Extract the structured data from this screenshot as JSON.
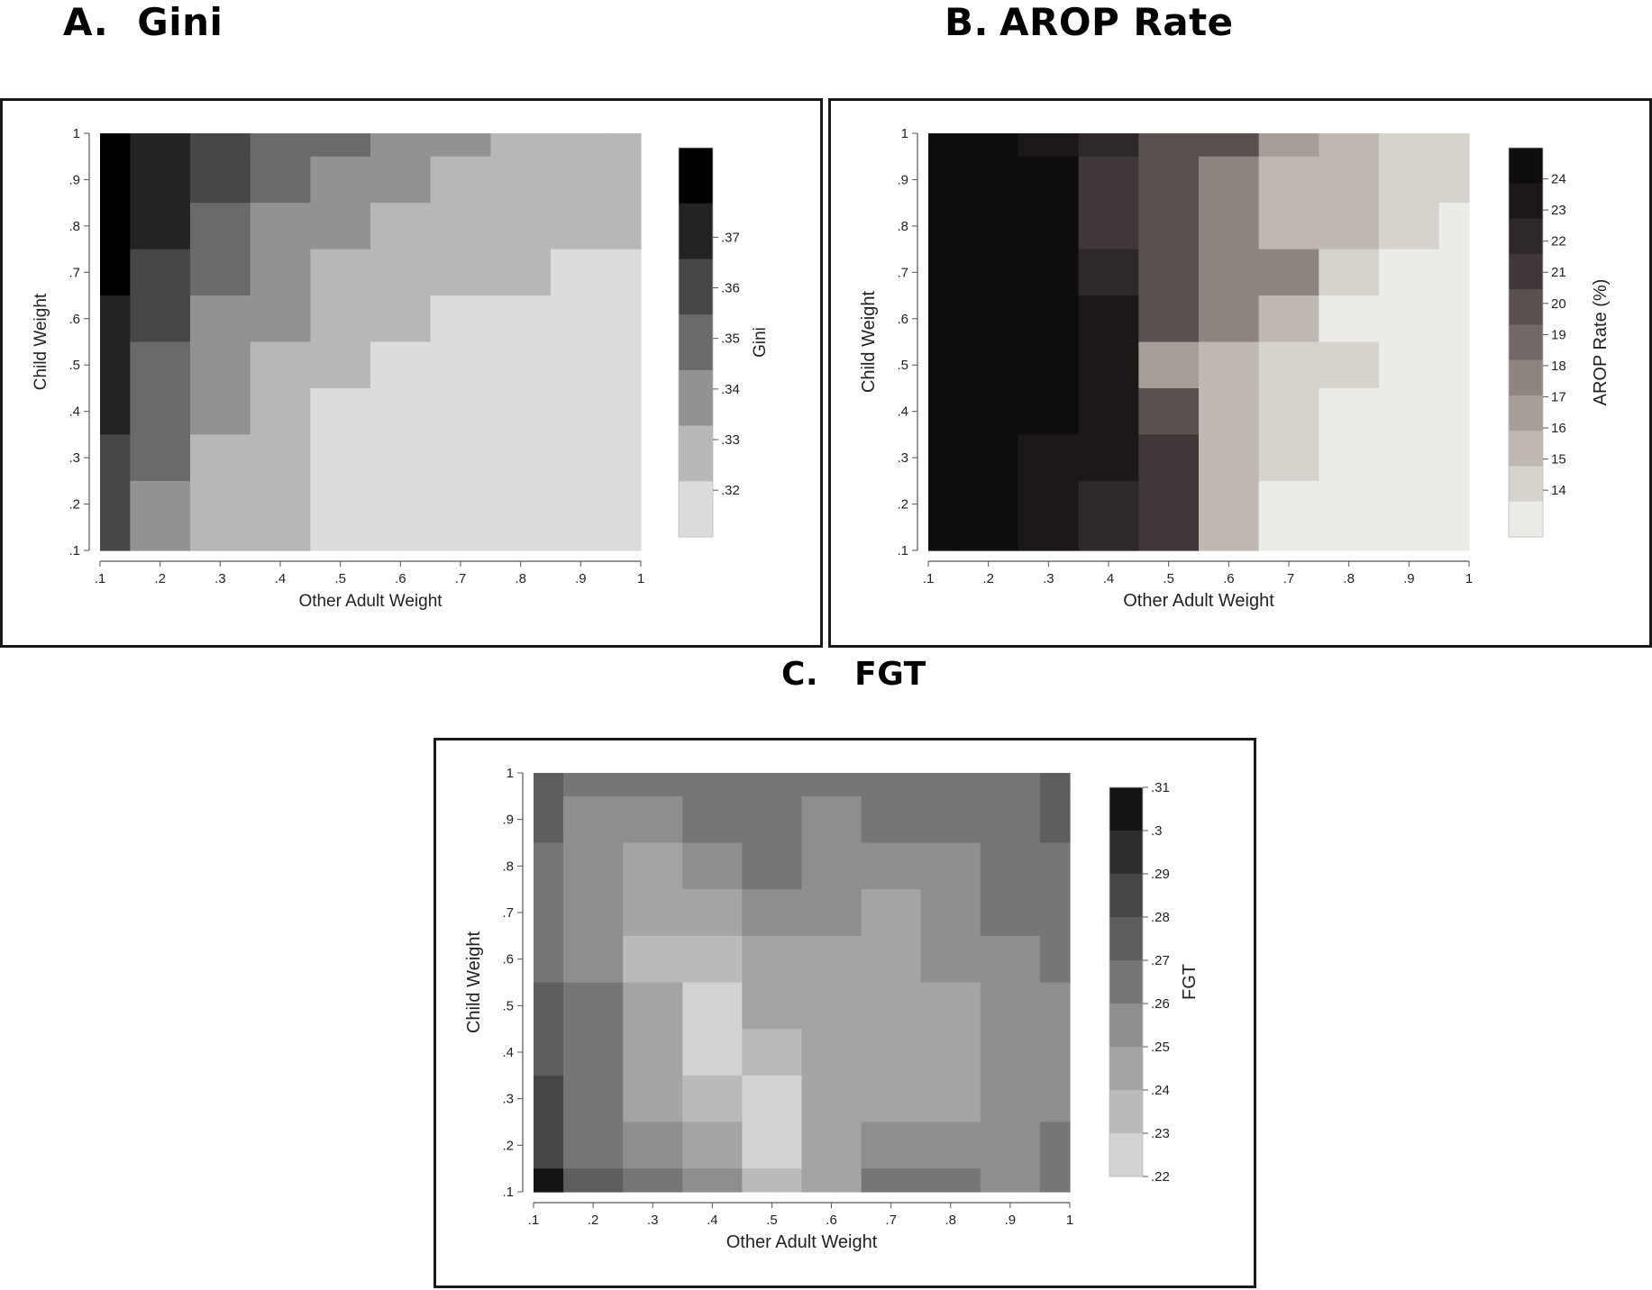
{
  "panels": {
    "a": {
      "letter": "A.",
      "name": "Gini"
    },
    "b": {
      "letter": "B.",
      "name": "AROP Rate"
    },
    "c": {
      "letter": "C.",
      "name": "FGT"
    }
  },
  "chart_data": [
    {
      "id": "a",
      "type": "heatmap",
      "xlabel": "Other Adult Weight",
      "ylabel": "Child Weight",
      "x": [
        0.1,
        0.2,
        0.3,
        0.4,
        0.5,
        0.6,
        0.7,
        0.8,
        0.9,
        1.0
      ],
      "y": [
        0.1,
        0.2,
        0.3,
        0.4,
        0.5,
        0.6,
        0.7,
        0.8,
        0.9,
        1.0
      ],
      "x_ticks": [
        ".1",
        ".2",
        ".3",
        ".4",
        ".5",
        ".6",
        ".7",
        ".8",
        ".9",
        "1"
      ],
      "y_ticks": [
        ".1",
        ".2",
        ".3",
        ".4",
        ".5",
        ".6",
        ".7",
        ".8",
        ".9",
        "1"
      ],
      "values_rows_top_to_bottom": [
        [
          0.375,
          0.365,
          0.355,
          0.345,
          0.345,
          0.335,
          0.335,
          0.325,
          0.325,
          0.325
        ],
        [
          0.375,
          0.365,
          0.355,
          0.345,
          0.335,
          0.335,
          0.325,
          0.325,
          0.325,
          0.325
        ],
        [
          0.375,
          0.365,
          0.345,
          0.335,
          0.335,
          0.325,
          0.325,
          0.325,
          0.325,
          0.325
        ],
        [
          0.375,
          0.355,
          0.345,
          0.335,
          0.325,
          0.325,
          0.325,
          0.325,
          0.315,
          0.315
        ],
        [
          0.365,
          0.355,
          0.335,
          0.335,
          0.325,
          0.325,
          0.315,
          0.315,
          0.315,
          0.315
        ],
        [
          0.365,
          0.345,
          0.335,
          0.325,
          0.325,
          0.315,
          0.315,
          0.315,
          0.315,
          0.315
        ],
        [
          0.365,
          0.345,
          0.335,
          0.325,
          0.315,
          0.315,
          0.315,
          0.315,
          0.315,
          0.315
        ],
        [
          0.355,
          0.345,
          0.325,
          0.325,
          0.315,
          0.315,
          0.315,
          0.315,
          0.315,
          0.315
        ],
        [
          0.355,
          0.335,
          0.325,
          0.325,
          0.315,
          0.315,
          0.315,
          0.315,
          0.315,
          0.315
        ],
        [
          0.355,
          0.335,
          0.325,
          0.325,
          0.315,
          0.315,
          0.315,
          0.315,
          0.315,
          0.315
        ]
      ],
      "legend": {
        "title": "Gini",
        "bins_top_to_bottom": [
          "#000000",
          "#232323",
          "#474747",
          "#6a6a6a",
          "#929292",
          "#b7b7b7",
          "#dcdcdc"
        ],
        "ticks": [
          {
            "label": ".37",
            "pos": 2.3
          },
          {
            "label": ".36",
            "pos": 3.6
          },
          {
            "label": ".35",
            "pos": 4.9
          },
          {
            "label": ".34",
            "pos": 6.2
          },
          {
            "label": ".33",
            "pos": 7.5
          },
          {
            "label": ".32",
            "pos": 8.8
          }
        ],
        "pos_max": 10
      }
    },
    {
      "id": "b",
      "type": "heatmap",
      "xlabel": "Other Adult Weight",
      "ylabel": "Child Weight",
      "x": [
        0.1,
        0.2,
        0.3,
        0.4,
        0.5,
        0.6,
        0.7,
        0.8,
        0.9,
        1.0
      ],
      "y": [
        0.1,
        0.2,
        0.3,
        0.4,
        0.5,
        0.6,
        0.7,
        0.8,
        0.9,
        1.0
      ],
      "x_ticks": [
        ".1",
        ".2",
        ".3",
        ".4",
        ".5",
        ".6",
        ".7",
        ".8",
        ".9",
        "1"
      ],
      "y_ticks": [
        ".1",
        ".2",
        ".3",
        ".4",
        ".5",
        ".6",
        ".7",
        ".8",
        ".9",
        "1"
      ],
      "values_rows_top_to_bottom": [
        [
          23.5,
          23.5,
          22,
          21,
          19,
          19,
          17,
          16,
          15,
          15
        ],
        [
          23.5,
          23.5,
          23.5,
          20,
          19,
          18,
          16,
          16,
          15,
          15
        ],
        [
          23.5,
          23.5,
          23,
          20,
          19,
          18,
          16,
          16,
          15,
          14
        ],
        [
          23.5,
          23.5,
          23,
          21,
          19,
          18,
          18,
          15,
          14,
          13.5
        ],
        [
          23.5,
          23.5,
          23,
          22,
          19,
          18,
          16,
          14,
          14,
          13.5
        ],
        [
          23.5,
          23.5,
          23,
          22,
          17,
          16,
          15,
          15,
          14,
          13.5
        ],
        [
          23.5,
          23.5,
          23,
          22,
          19,
          16,
          15,
          14,
          13.5,
          13.5
        ],
        [
          23.5,
          23.5,
          22,
          22,
          20,
          16,
          15,
          14,
          13.5,
          13.5
        ],
        [
          23.5,
          23.5,
          22,
          21,
          20,
          16,
          14,
          14,
          13.5,
          13.5
        ],
        [
          23.5,
          23,
          22,
          21,
          20,
          16,
          14,
          14,
          13.5,
          13.5
        ]
      ],
      "legend": {
        "title": "AROP Rate (%)",
        "bins_top_to_bottom": [
          "#0e0e0e",
          "#1c1818",
          "#2e2828",
          "#403838",
          "#5a5050",
          "#736868",
          "#8e8480",
          "#a69e98",
          "#bfb7b1",
          "#d6d3cd",
          "#ebebe7"
        ],
        "ticks": [
          {
            "label": "24",
            "pos": 1.0
          },
          {
            "label": "23",
            "pos": 2.0
          },
          {
            "label": "22",
            "pos": 3.0
          },
          {
            "label": "21",
            "pos": 4.0
          },
          {
            "label": "20",
            "pos": 5.0
          },
          {
            "label": "19",
            "pos": 6.0
          },
          {
            "label": "18",
            "pos": 7.0
          },
          {
            "label": "17",
            "pos": 8.0
          },
          {
            "label": "16",
            "pos": 9.0
          },
          {
            "label": "15",
            "pos": 10.0
          },
          {
            "label": "14",
            "pos": 11.0
          }
        ],
        "pos_max": 12.5
      }
    },
    {
      "id": "c",
      "type": "heatmap",
      "xlabel": "Other Adult Weight",
      "ylabel": "Child Weight",
      "x": [
        0.1,
        0.2,
        0.3,
        0.4,
        0.5,
        0.6,
        0.7,
        0.8,
        0.9,
        1.0
      ],
      "y": [
        0.1,
        0.2,
        0.3,
        0.4,
        0.5,
        0.6,
        0.7,
        0.8,
        0.9,
        1.0
      ],
      "x_ticks": [
        ".1",
        ".2",
        ".3",
        ".4",
        ".5",
        ".6",
        ".7",
        ".8",
        ".9",
        "1"
      ],
      "y_ticks": [
        ".1",
        ".2",
        ".3",
        ".4",
        ".5",
        ".6",
        ".7",
        ".8",
        ".9",
        "1"
      ],
      "values_rows_top_to_bottom": [
        [
          0.285,
          0.265,
          0.265,
          0.275,
          0.265,
          0.265,
          0.275,
          0.275,
          0.275,
          0.285
        ],
        [
          0.285,
          0.255,
          0.255,
          0.265,
          0.265,
          0.255,
          0.265,
          0.265,
          0.265,
          0.285
        ],
        [
          0.275,
          0.255,
          0.245,
          0.255,
          0.265,
          0.255,
          0.255,
          0.255,
          0.265,
          0.275
        ],
        [
          0.275,
          0.255,
          0.245,
          0.245,
          0.255,
          0.255,
          0.245,
          0.255,
          0.265,
          0.275
        ],
        [
          0.275,
          0.255,
          0.235,
          0.235,
          0.245,
          0.245,
          0.245,
          0.255,
          0.255,
          0.265
        ],
        [
          0.285,
          0.265,
          0.245,
          0.225,
          0.245,
          0.245,
          0.245,
          0.245,
          0.255,
          0.255
        ],
        [
          0.285,
          0.265,
          0.245,
          0.225,
          0.235,
          0.245,
          0.245,
          0.245,
          0.255,
          0.255
        ],
        [
          0.295,
          0.265,
          0.245,
          0.235,
          0.225,
          0.245,
          0.245,
          0.245,
          0.255,
          0.255
        ],
        [
          0.295,
          0.275,
          0.255,
          0.245,
          0.225,
          0.245,
          0.255,
          0.255,
          0.255,
          0.275
        ],
        [
          0.315,
          0.285,
          0.265,
          0.255,
          0.235,
          0.245,
          0.265,
          0.265,
          0.255,
          0.275
        ]
      ],
      "legend": {
        "title": "FGT",
        "bins_top_to_bottom": [
          "#141414",
          "#2d2d2d",
          "#464646",
          "#5e5e5e",
          "#767676",
          "#8e8e8e",
          "#a4a4a4",
          "#bababa",
          "#d2d2d2"
        ],
        "ticks": [
          {
            "label": ".31",
            "pos": 0.0
          },
          {
            "label": ".3",
            "pos": 1.0
          },
          {
            "label": ".29",
            "pos": 2.0
          },
          {
            "label": ".28",
            "pos": 3.0
          },
          {
            "label": ".27",
            "pos": 4.0
          },
          {
            "label": ".26",
            "pos": 5.0
          },
          {
            "label": ".25",
            "pos": 6.0
          },
          {
            "label": ".24",
            "pos": 7.0
          },
          {
            "label": ".23",
            "pos": 8.0
          },
          {
            "label": ".22",
            "pos": 9.0
          }
        ],
        "pos_max": 9
      }
    }
  ]
}
